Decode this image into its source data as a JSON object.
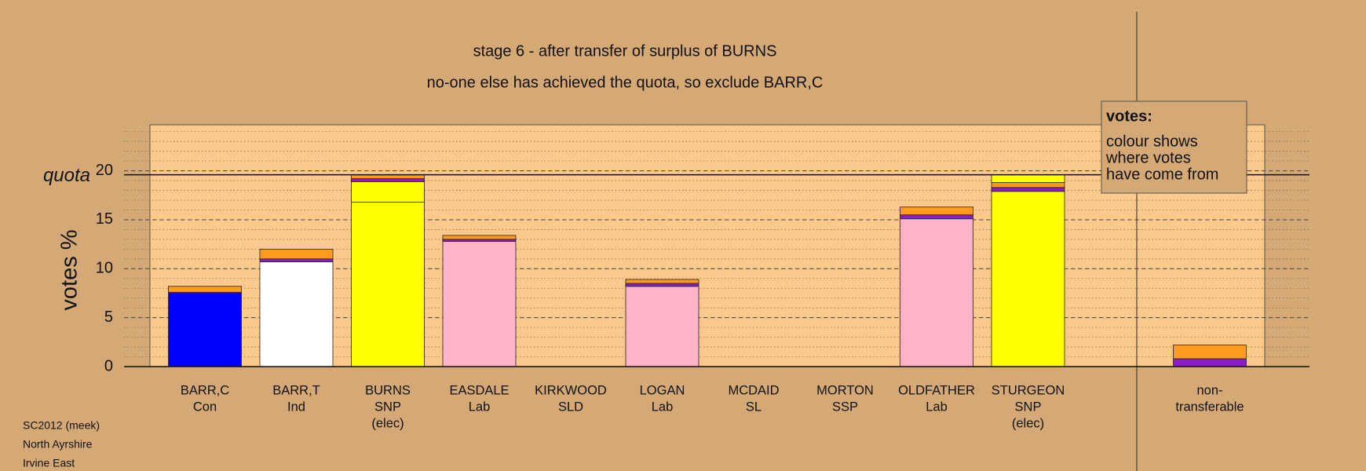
{
  "chart_data": {
    "type": "stacked-bar",
    "title": "stage 6 - after transfer of surplus of BURNS",
    "subtitle": "no-one else has achieved the quota, so exclude BARR,C",
    "y_label": "votes %",
    "ylim": [
      0,
      24.7
    ],
    "yticks": [
      0,
      5,
      10,
      15,
      20
    ],
    "minor_step": 1,
    "grid": true,
    "quota": {
      "label": "quota",
      "value": 19.6
    },
    "legend": {
      "title": "votes:",
      "lines": [
        "colour shows",
        "where votes",
        "have come from"
      ]
    },
    "footer": [
      "SC2012 (meek)",
      "North Ayrshire",
      "Irvine East"
    ],
    "bars": [
      {
        "labels": [
          "BARR,C",
          "Con"
        ],
        "segments": [
          {
            "color": "#0000ff",
            "value": 7.5
          },
          {
            "color": "#8a1fc4",
            "value": 0.1
          },
          {
            "color": "#ff9a1f",
            "value": 0.6
          }
        ]
      },
      {
        "labels": [
          "BARR,T",
          "Ind"
        ],
        "segments": [
          {
            "color": "#ffffff",
            "value": 10.7
          },
          {
            "color": "#8a1fc4",
            "value": 0.3
          },
          {
            "color": "#ff9a1f",
            "value": 1.0
          }
        ]
      },
      {
        "labels": [
          "BURNS",
          "SNP",
          "(elec)"
        ],
        "segments": [
          {
            "color": "#ffff00",
            "value": 16.8
          },
          {
            "color": "#ffff00",
            "value": 2.1
          },
          {
            "color": "#8a1fc4",
            "value": 0.3
          },
          {
            "color": "#ff9a1f",
            "value": 0.4
          }
        ]
      },
      {
        "labels": [
          "EASDALE",
          "Lab"
        ],
        "segments": [
          {
            "color": "#ffb3c6",
            "value": 12.8
          },
          {
            "color": "#8a1fc4",
            "value": 0.2
          },
          {
            "color": "#ff9a1f",
            "value": 0.4
          }
        ]
      },
      {
        "labels": [
          "KIRKWOOD",
          "SLD"
        ],
        "segments": []
      },
      {
        "labels": [
          "LOGAN",
          "Lab"
        ],
        "segments": [
          {
            "color": "#ffb3c6",
            "value": 8.2
          },
          {
            "color": "#8a1fc4",
            "value": 0.3
          },
          {
            "color": "#ff9a1f",
            "value": 0.4
          }
        ]
      },
      {
        "labels": [
          "MCDAID",
          "SL"
        ],
        "segments": []
      },
      {
        "labels": [
          "MORTON",
          "SSP"
        ],
        "segments": []
      },
      {
        "labels": [
          "OLDFATHER",
          "Lab"
        ],
        "segments": [
          {
            "color": "#ffb3c6",
            "value": 15.1
          },
          {
            "color": "#8a1fc4",
            "value": 0.4
          },
          {
            "color": "#ff9a1f",
            "value": 0.8
          }
        ]
      },
      {
        "labels": [
          "STURGEON",
          "SNP",
          "(elec)"
        ],
        "segments": [
          {
            "color": "#ffff00",
            "value": 17.9
          },
          {
            "color": "#8a1fc4",
            "value": 0.4
          },
          {
            "color": "#ff9a1f",
            "value": 0.5
          },
          {
            "color": "#ffff00",
            "value": 0.8
          }
        ]
      },
      {
        "labels": [
          "non-",
          "transferable"
        ],
        "segments": [
          {
            "color": "#8a1fc4",
            "value": 0.8
          },
          {
            "color": "#ff9a1f",
            "value": 1.4
          }
        ]
      }
    ]
  }
}
